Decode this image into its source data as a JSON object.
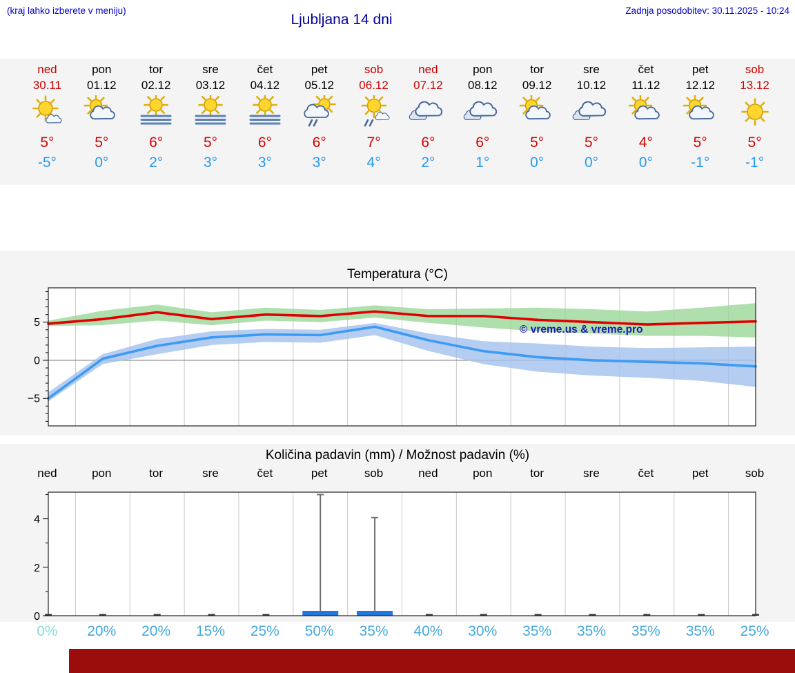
{
  "header": {
    "hint": "(kraj lahko izberete v meniju)",
    "title": "Ljubljana 14 dni",
    "updated": "Zadnja posodobitev: 30.11.2025 - 10:24"
  },
  "forecast": {
    "days": [
      {
        "name": "ned",
        "date": "30.11",
        "weekend": true,
        "icon": "sun-small-cloud",
        "tmax": "5°",
        "tmin": "-5°"
      },
      {
        "name": "pon",
        "date": "01.12",
        "weekend": false,
        "icon": "cloud-sun",
        "tmax": "5°",
        "tmin": "0°"
      },
      {
        "name": "tor",
        "date": "02.12",
        "weekend": false,
        "icon": "fog-sun",
        "tmax": "6°",
        "tmin": "2°"
      },
      {
        "name": "sre",
        "date": "03.12",
        "weekend": false,
        "icon": "fog-sun",
        "tmax": "5°",
        "tmin": "3°"
      },
      {
        "name": "čet",
        "date": "04.12",
        "weekend": false,
        "icon": "fog-sun",
        "tmax": "6°",
        "tmin": "3°"
      },
      {
        "name": "pet",
        "date": "05.12",
        "weekend": false,
        "icon": "sun-cloud-rain",
        "tmax": "6°",
        "tmin": "3°"
      },
      {
        "name": "sob",
        "date": "06.12",
        "weekend": true,
        "icon": "sun-rain",
        "tmax": "7°",
        "tmin": "4°"
      },
      {
        "name": "ned",
        "date": "07.12",
        "weekend": true,
        "icon": "cloudy",
        "tmax": "6°",
        "tmin": "2°"
      },
      {
        "name": "pon",
        "date": "08.12",
        "weekend": false,
        "icon": "cloudy",
        "tmax": "6°",
        "tmin": "1°"
      },
      {
        "name": "tor",
        "date": "09.12",
        "weekend": false,
        "icon": "cloud-sun",
        "tmax": "5°",
        "tmin": "0°"
      },
      {
        "name": "sre",
        "date": "10.12",
        "weekend": false,
        "icon": "cloudy",
        "tmax": "5°",
        "tmin": "0°"
      },
      {
        "name": "čet",
        "date": "11.12",
        "weekend": false,
        "icon": "cloud-sun",
        "tmax": "4°",
        "tmin": "0°"
      },
      {
        "name": "pet",
        "date": "12.12",
        "weekend": false,
        "icon": "cloud-sun",
        "tmax": "5°",
        "tmin": "-1°"
      },
      {
        "name": "sob",
        "date": "13.12",
        "weekend": true,
        "icon": "sunny",
        "tmax": "5°",
        "tmin": "-1°"
      }
    ]
  },
  "chart_data": [
    {
      "type": "line",
      "title": "Temperatura (°C)",
      "categories": [
        "ned",
        "pon",
        "tor",
        "sre",
        "čet",
        "pet",
        "sob",
        "ned",
        "pon",
        "tor",
        "sre",
        "čet",
        "pet",
        "sob"
      ],
      "ylim": [
        -8.6,
        9.5
      ],
      "yticks": [
        5,
        0,
        -5
      ],
      "grid": "vertical-day-separators",
      "legend": "none",
      "watermark": "© vreme.us & vreme.pro",
      "series": [
        {
          "name": "max-temp",
          "color": "#e00000",
          "values": [
            4.8,
            5.4,
            6.3,
            5.4,
            6.0,
            5.8,
            6.4,
            5.8,
            5.8,
            5.3,
            5.0,
            4.7,
            4.9,
            5.1
          ]
        },
        {
          "name": "min-temp",
          "color": "#3d9bf5",
          "values": [
            -5.0,
            0.2,
            1.9,
            3.0,
            3.4,
            3.3,
            4.4,
            2.6,
            1.2,
            0.4,
            0.0,
            -0.2,
            -0.4,
            -0.8
          ]
        }
      ],
      "bands": [
        {
          "name": "max-temp-range",
          "color": "#9cd79a",
          "upper": [
            5.2,
            6.5,
            7.3,
            6.3,
            6.9,
            6.6,
            7.2,
            6.7,
            6.8,
            6.9,
            6.7,
            6.4,
            6.9,
            7.5
          ],
          "lower": [
            4.5,
            4.6,
            5.2,
            4.6,
            5.2,
            5.0,
            5.6,
            4.9,
            4.3,
            3.8,
            3.5,
            3.2,
            3.2,
            3.0
          ]
        },
        {
          "name": "min-temp-range",
          "color": "#a2c1ec",
          "upper": [
            -4.2,
            0.8,
            2.8,
            3.8,
            4.1,
            4.0,
            4.9,
            3.5,
            2.5,
            2.2,
            1.8,
            1.6,
            1.7,
            1.8
          ],
          "lower": [
            -5.4,
            -0.5,
            0.8,
            2.0,
            2.4,
            2.3,
            3.3,
            1.2,
            -0.5,
            -1.5,
            -2.0,
            -2.3,
            -2.7,
            -3.5
          ]
        }
      ]
    },
    {
      "type": "bar",
      "title": "Količina padavin (mm) / Možnost padavin (%)",
      "categories": [
        "ned",
        "pon",
        "tor",
        "sre",
        "čet",
        "pet",
        "sob",
        "ned",
        "pon",
        "tor",
        "sre",
        "čet",
        "pet",
        "sob"
      ],
      "ylim": [
        0,
        5.1
      ],
      "yticks": [
        0,
        2,
        4
      ],
      "bar_color": "#1f76e0",
      "values": [
        0,
        0,
        0,
        0,
        0,
        0.2,
        0.2,
        0,
        0,
        0,
        0,
        0,
        0,
        0
      ],
      "whisker_max": [
        0,
        0,
        0,
        0,
        0,
        5.0,
        4.05,
        0,
        0,
        0,
        0,
        0,
        0,
        0
      ],
      "probabilities_pct": [
        0,
        20,
        20,
        15,
        25,
        50,
        35,
        40,
        30,
        35,
        35,
        35,
        35,
        25
      ],
      "prob_labels": [
        "0%",
        "20%",
        "20%",
        "15%",
        "25%",
        "50%",
        "35%",
        "40%",
        "30%",
        "35%",
        "35%",
        "35%",
        "35%",
        "25%"
      ]
    }
  ],
  "colors": {
    "accent_blue": "#0000cc",
    "title_blue": "#000099",
    "weekend_red": "#cc0000",
    "tmax_red": "#d40000",
    "tmin_blue": "#2898ec",
    "prob_blue": "#45aadc",
    "prob_zero_blue": "#8adddd",
    "footer_red": "#9b0d0d",
    "section_bg": "#f4f4f4"
  }
}
